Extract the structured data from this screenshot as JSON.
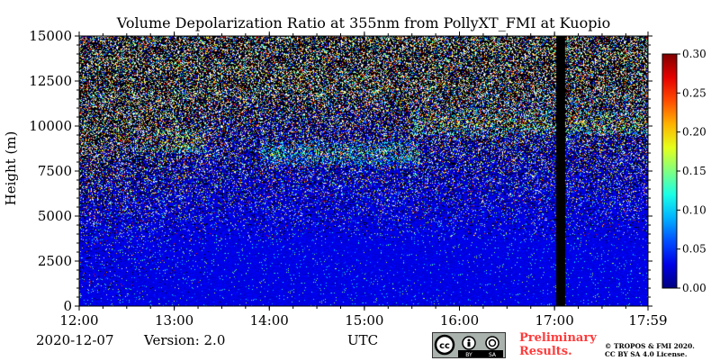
{
  "chart_data": {
    "type": "heatmap",
    "title": "Volume Depolarization Ratio at 355nm from PollyXT_FMI at Kuopio",
    "xlabel": "UTC",
    "ylabel": "Height (m)",
    "x_range": [
      "12:00",
      "17:59"
    ],
    "x_ticks": [
      "12:00",
      "13:00",
      "14:00",
      "15:00",
      "16:00",
      "17:00",
      "17:59"
    ],
    "x_tick_hours": [
      12.0,
      13.0,
      14.0,
      15.0,
      16.0,
      17.0,
      17.9833
    ],
    "ylim": [
      0,
      15000
    ],
    "y_ticks": [
      0,
      2500,
      5000,
      7500,
      10000,
      12500,
      15000
    ],
    "y_tick_labels": [
      "0",
      "2500",
      "5000",
      "7500",
      "10000",
      "12500",
      "15000"
    ],
    "colorbar": {
      "range": [
        0.0,
        0.3
      ],
      "ticks": [
        0.0,
        0.05,
        0.1,
        0.15,
        0.2,
        0.25,
        0.3
      ],
      "tick_labels": [
        "0.00",
        "0.05",
        "0.10",
        "0.15",
        "0.20",
        "0.25",
        "0.30"
      ],
      "colormap": "jet"
    },
    "no_data_color": "#000000",
    "data_gap": {
      "start": "17:01",
      "end": "17:07"
    },
    "cloud_layers": [
      {
        "start": "12:40",
        "end": "13:20",
        "height_m": 9200,
        "value": 0.2
      },
      {
        "start": "13:55",
        "end": "15:35",
        "height_m": 8500,
        "value": 0.12
      },
      {
        "start": "14:10",
        "end": "17:59",
        "height_m": 11800,
        "value": 0.1
      },
      {
        "start": "15:30",
        "end": "17:59",
        "height_m": 10200,
        "value": 0.18
      }
    ]
  },
  "footer": {
    "date": "2020-12-07",
    "version": "Version: 2.0",
    "time_zone": "UTC",
    "preliminary": [
      "Preliminary",
      "Results."
    ],
    "copyright": [
      "© TROPOS & FMI 2020.",
      "CC BY SA 4.0 License."
    ],
    "license_badge": {
      "top": "cc",
      "bottom": [
        "BY",
        "SA"
      ]
    }
  }
}
